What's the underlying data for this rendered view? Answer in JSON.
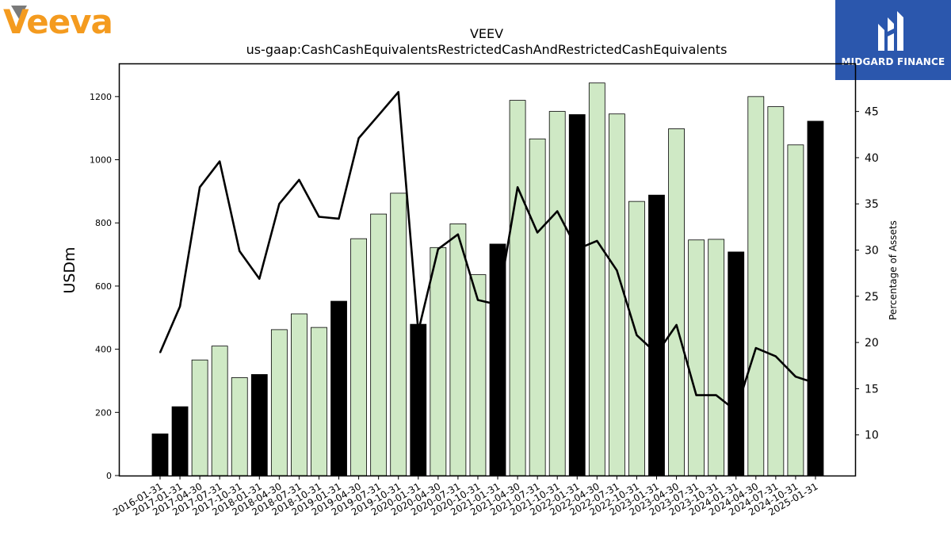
{
  "branding": {
    "company_logo_text": "Veeva",
    "publisher": "MIDGARD FINANCE",
    "accent_orange": "#f49b1f",
    "logo_grey": "#7a7a7a",
    "publisher_bg": "#2b57ad"
  },
  "chart_data": {
    "type": "bar",
    "title": "VEEV",
    "subtitle": "us-gaap:CashCashEquivalentsRestrictedCashAndRestrictedCashEquivalents",
    "ylabel": "USDm",
    "y2label": "Percentage of Assets",
    "ylim": [
      0,
      1305
    ],
    "y2lim": [
      5.6,
      50.2
    ],
    "yticks": [
      0,
      200,
      400,
      600,
      800,
      1000,
      1200
    ],
    "y2ticks": [
      10,
      15,
      20,
      25,
      30,
      35,
      40,
      45
    ],
    "categories": [
      "2016-01-31",
      "2017-01-31",
      "2017-04-30",
      "2017-07-31",
      "2017-10-31",
      "2018-01-31",
      "2018-04-30",
      "2018-07-31",
      "2018-10-31",
      "2019-01-31",
      "2019-04-30",
      "2019-07-31",
      "2019-10-31",
      "2020-01-31",
      "2020-04-30",
      "2020-07-31",
      "2020-10-31",
      "2021-01-31",
      "2021-04-30",
      "2021-07-31",
      "2021-10-31",
      "2022-01-31",
      "2022-04-30",
      "2022-07-31",
      "2022-10-31",
      "2023-01-31",
      "2023-04-30",
      "2023-07-31",
      "2023-10-31",
      "2024-01-31",
      "2024-04-30",
      "2024-07-31",
      "2024-10-31",
      "2025-01-31"
    ],
    "series": [
      {
        "kind": "bar",
        "values": [
          132,
          218,
          366,
          410,
          310,
          320,
          462,
          512,
          469,
          552,
          750,
          828,
          894,
          479,
          722,
          797,
          636,
          733,
          1188,
          1066,
          1153,
          1143,
          1243,
          1145,
          868,
          888,
          1098,
          746,
          748,
          708,
          1200,
          1168,
          1047,
          1122
        ],
        "annual": [
          true,
          true,
          false,
          false,
          false,
          true,
          false,
          false,
          false,
          true,
          false,
          false,
          false,
          true,
          false,
          false,
          false,
          true,
          false,
          false,
          false,
          true,
          false,
          false,
          false,
          true,
          false,
          false,
          false,
          true,
          false,
          false,
          false,
          true
        ],
        "colors": {
          "annual": "#000000",
          "quarter": "#cfe9c5",
          "edge": "#000000"
        }
      },
      {
        "kind": "line",
        "axis": "right",
        "values": [
          18.9,
          23.9,
          36.8,
          39.6,
          29.9,
          26.9,
          35.0,
          37.6,
          33.6,
          33.4,
          42.1,
          44.6,
          47.1,
          21.2,
          30.1,
          31.7,
          24.6,
          24.1,
          36.8,
          31.9,
          34.2,
          30.1,
          31.0,
          27.8,
          20.8,
          18.8,
          21.9,
          14.3,
          14.3,
          12.6,
          19.4,
          18.5,
          16.3,
          15.6
        ],
        "color": "#000000"
      }
    ],
    "grid": false,
    "legend": "none"
  }
}
